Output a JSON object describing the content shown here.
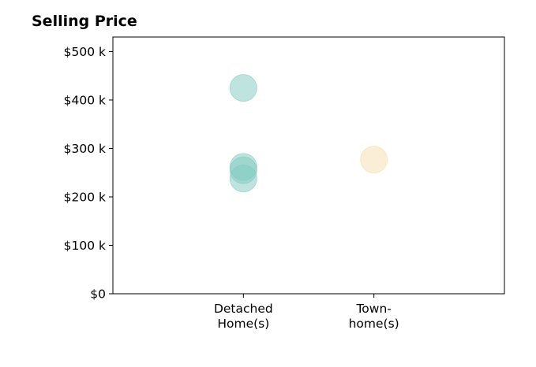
{
  "chart_data": {
    "type": "scatter",
    "title": "Selling Price",
    "xlabel": "",
    "ylabel": "",
    "categories": [
      [
        "Detached",
        "Home(s)"
      ],
      [
        "Town-",
        "home(s)"
      ]
    ],
    "xlim": [
      -1,
      2
    ],
    "ylim": [
      0,
      530000
    ],
    "yticks": [
      0,
      100000,
      200000,
      300000,
      400000,
      500000
    ],
    "ytick_labels": [
      "$0",
      "$100 k",
      "$200 k",
      "$300 k",
      "$400 k",
      "$500 k"
    ],
    "grid": false,
    "legend": false,
    "series": [
      {
        "color": "#7fc9bf",
        "points": [
          {
            "category": 0,
            "value": 425000
          },
          {
            "category": 0,
            "value": 262000
          },
          {
            "category": 0,
            "value": 255000
          },
          {
            "category": 0,
            "value": 238000
          }
        ]
      },
      {
        "color": "#f5deb0",
        "points": [
          {
            "category": 1,
            "value": 277000
          }
        ]
      }
    ]
  }
}
